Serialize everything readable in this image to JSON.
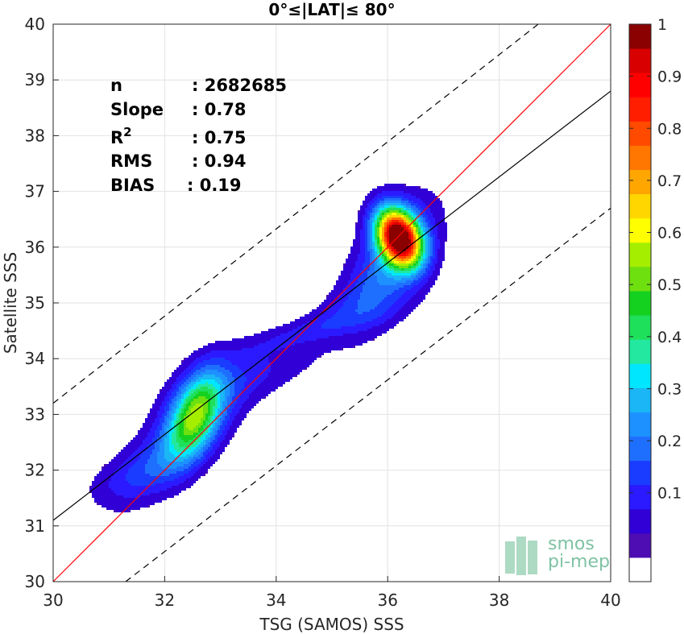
{
  "chart_data": {
    "type": "heatmap",
    "title": "0°≤|LAT|≤ 80°",
    "xlabel": "TSG (SAMOS) SSS",
    "ylabel": "Satellite SSS",
    "xlim": [
      30,
      40
    ],
    "ylim": [
      30,
      40
    ],
    "xticks": [
      30,
      32,
      34,
      36,
      38,
      40
    ],
    "yticks": [
      30,
      31,
      32,
      33,
      34,
      35,
      36,
      37,
      38,
      39,
      40
    ],
    "grid": true,
    "stats": [
      {
        "label": "n",
        "value": ": 2682685"
      },
      {
        "label": "Slope",
        "value": ": 0.78"
      },
      {
        "label": "R",
        "superscript": "2",
        "value": ": 0.75"
      },
      {
        "label": "RMS",
        "value": ": 0.94"
      },
      {
        "label": "BIAS",
        "value": ": 0.19"
      }
    ],
    "lines": [
      {
        "name": "identity",
        "color": "#ff0000",
        "points": [
          [
            30,
            30
          ],
          [
            40,
            40
          ]
        ]
      },
      {
        "name": "regression",
        "color": "#000000",
        "points": [
          [
            30,
            31.1
          ],
          [
            40,
            38.8
          ]
        ]
      },
      {
        "name": "upper-bound",
        "color": "#000000",
        "dash": true,
        "points": [
          [
            30,
            33.2
          ],
          [
            38.7,
            40
          ]
        ]
      },
      {
        "name": "lower-bound",
        "color": "#000000",
        "dash": true,
        "points": [
          [
            31.3,
            30
          ],
          [
            40,
            36.7
          ]
        ]
      }
    ],
    "density_peaks": [
      {
        "x": 36.2,
        "y": 36.2,
        "value": 0.95
      },
      {
        "x": 32.5,
        "y": 33.0,
        "value": 0.42
      }
    ],
    "colorbar": {
      "ticks": [
        "0.1",
        "0.2",
        "0.3",
        "0.4",
        "0.5",
        "0.6",
        "0.7",
        "0.8",
        "0.9",
        "1"
      ],
      "colors": [
        "#ffffff",
        "#4d0db3",
        "#3000d6",
        "#2b1aff",
        "#1a3cff",
        "#1f6fff",
        "#1d91ff",
        "#1ab6f5",
        "#00e6ff",
        "#22e8a0",
        "#1fe05a",
        "#14d11f",
        "#6fe00f",
        "#a5ee00",
        "#ffff00",
        "#ffd600",
        "#ffa600",
        "#ff7600",
        "#ff4a00",
        "#ff1e00",
        "#ff0000",
        "#d80000",
        "#8b0000"
      ]
    },
    "watermark": [
      "smos",
      "pi-mep"
    ]
  }
}
